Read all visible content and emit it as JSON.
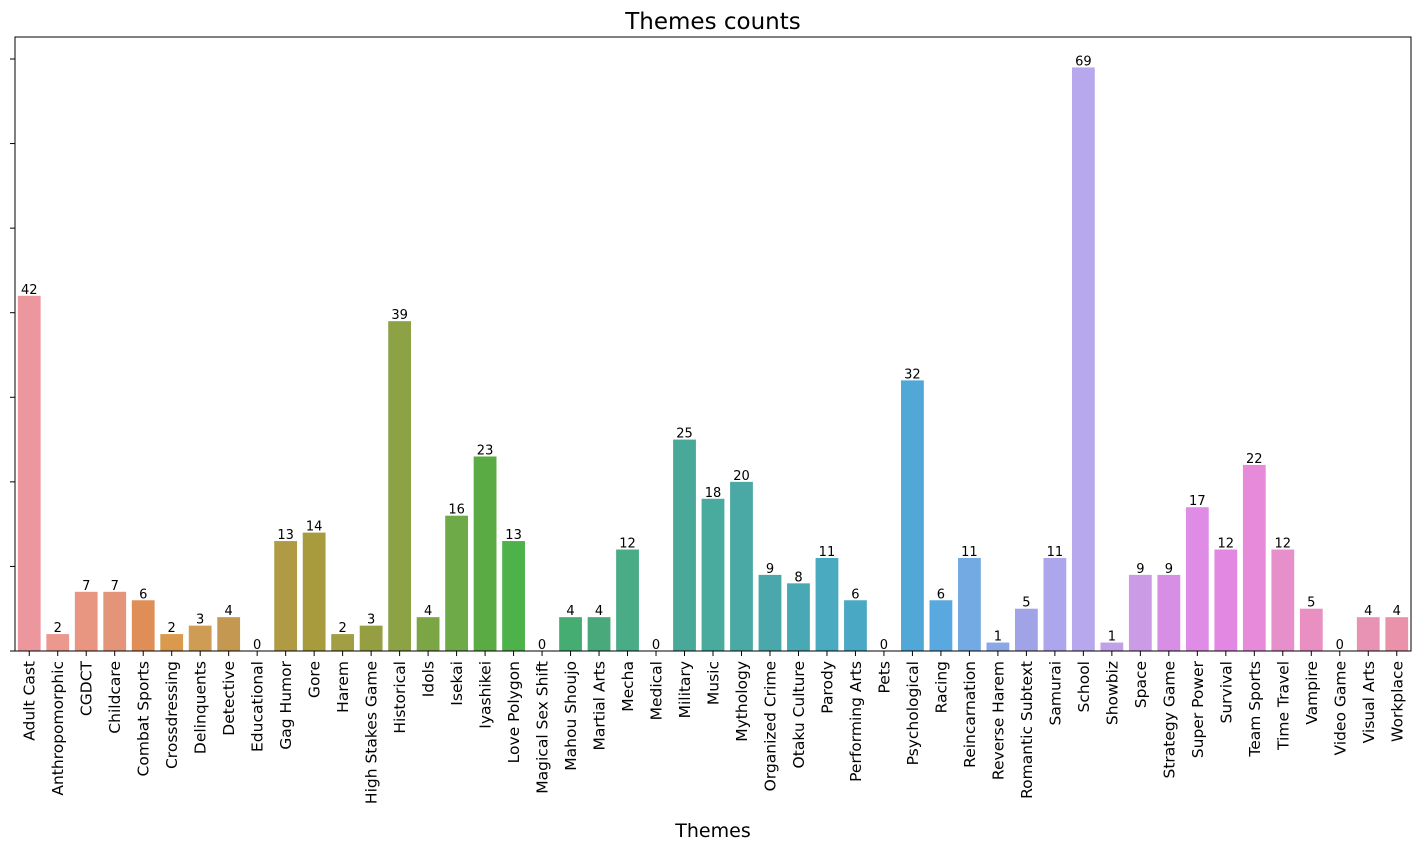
{
  "chart_data": {
    "type": "bar",
    "title": "Themes counts",
    "xlabel": "Themes",
    "ylabel": "",
    "ylim": [
      0,
      72.6
    ],
    "y_tick_values": [
      0,
      10,
      20,
      30,
      40,
      50,
      60,
      70
    ],
    "y_tick_labels_shown": false,
    "grid": false,
    "categories": [
      "Adult Cast",
      "Anthropomorphic",
      "CGDCT",
      "Childcare",
      "Combat Sports",
      "Crossdressing",
      "Delinquents",
      "Detective",
      "Educational",
      "Gag Humor",
      "Gore",
      "Harem",
      "High Stakes Game",
      "Historical",
      "Idols",
      "Isekai",
      "Iyashikei",
      "Love Polygon",
      "Magical Sex Shift",
      "Mahou Shoujo",
      "Martial Arts",
      "Mecha",
      "Medical",
      "Military",
      "Music",
      "Mythology",
      "Organized Crime",
      "Otaku Culture",
      "Parody",
      "Performing Arts",
      "Pets",
      "Psychological",
      "Racing",
      "Reincarnation",
      "Reverse Harem",
      "Romantic Subtext",
      "Samurai",
      "School",
      "Showbiz",
      "Space",
      "Strategy Game",
      "Super Power",
      "Survival",
      "Team Sports",
      "Time Travel",
      "Vampire",
      "Video Game",
      "Visual Arts",
      "Workplace"
    ],
    "values": [
      42,
      2,
      7,
      7,
      6,
      2,
      3,
      4,
      0,
      13,
      14,
      2,
      3,
      39,
      4,
      16,
      23,
      13,
      0,
      4,
      4,
      12,
      0,
      25,
      18,
      20,
      9,
      8,
      11,
      6,
      0,
      32,
      6,
      11,
      1,
      5,
      11,
      69,
      1,
      9,
      9,
      17,
      12,
      22,
      12,
      5,
      0,
      4,
      4
    ],
    "colors": [
      "#ec969d",
      "#eb988e",
      "#e89681",
      "#e39479",
      "#e08e58",
      "#d99a4e",
      "#cf9c55",
      "#c59852",
      "#b99a46",
      "#b09a43",
      "#a89b3e",
      "#a19e43",
      "#959e41",
      "#8ca245",
      "#7ca546",
      "#6eaa47",
      "#5bab45",
      "#4db24a",
      "#3fae5c",
      "#45ad72",
      "#4aa97b",
      "#4aab87",
      "#4aa98e",
      "#48a998",
      "#49aa9e",
      "#4aa8a5",
      "#4aa8ac",
      "#48a8b3",
      "#4aaac0",
      "#49a8c4",
      "#4aa6cb",
      "#51a7d6",
      "#59a8e0",
      "#74aae3",
      "#8ba8e6",
      "#a0a4e6",
      "#aea6ec",
      "#b7a7ec",
      "#c0a0e8",
      "#cb9be6",
      "#d68fe5",
      "#df8ce6",
      "#e388e2",
      "#e88ada",
      "#e68fcb",
      "#e98fc1",
      "#e88fb8",
      "#e893b3",
      "#ea92a9"
    ]
  }
}
